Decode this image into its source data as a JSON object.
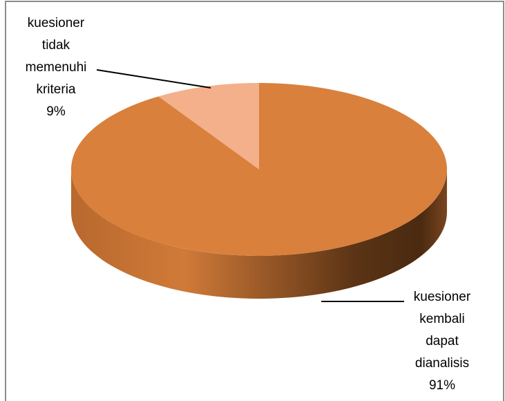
{
  "chart_data": {
    "type": "pie",
    "categories": [
      "kuesioner tidak memenuhi kriteria",
      "kuesioner kembali dapat dianalisis"
    ],
    "values": [
      9,
      91
    ],
    "value_labels": [
      "9%",
      "91%"
    ],
    "colors": [
      "#f3b08a",
      "#d9803c"
    ]
  }
}
